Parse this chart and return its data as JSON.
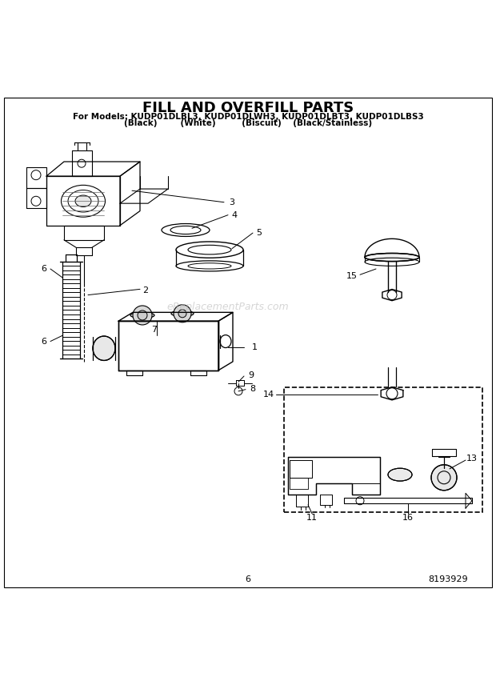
{
  "title": "FILL AND OVERFILL PARTS",
  "subtitle1": "For Models: KUDP01DLBL3, KUDP01DLWH3, KUDP01DLBT3, KUDP01DLBS3",
  "subtitle2": "(Black)        (White)         (Biscuit)    (Black/Stainless)",
  "watermark": "eReplacementParts.com",
  "page_number": "6",
  "doc_number": "8193929",
  "bg": "#ffffff",
  "fg": "#000000",
  "gray": "#888888",
  "light_gray": "#dddddd"
}
